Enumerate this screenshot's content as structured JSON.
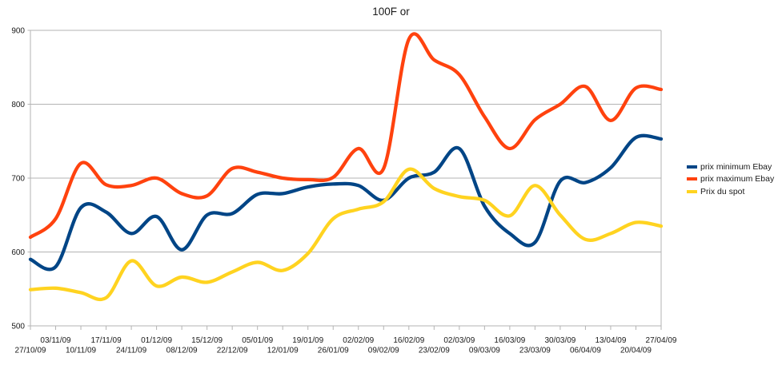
{
  "chart_data": {
    "type": "line",
    "smooth": true,
    "title": "100F or",
    "categories": [
      "27/10/09",
      "03/11/09",
      "10/11/09",
      "17/11/09",
      "24/11/09",
      "01/12/09",
      "08/12/09",
      "15/12/09",
      "22/12/09",
      "05/01/09",
      "12/01/09",
      "19/01/09",
      "26/01/09",
      "02/02/09",
      "09/02/09",
      "16/02/09",
      "23/02/09",
      "02/03/09",
      "09/03/09",
      "16/03/09",
      "23/03/09",
      "30/03/09",
      "06/04/09",
      "13/04/09",
      "20/04/09",
      "27/04/09"
    ],
    "series": [
      {
        "name": "prix minimum Ebay",
        "color": "#004586",
        "values": [
          590,
          580,
          660,
          654,
          625,
          648,
          603,
          650,
          652,
          678,
          679,
          688,
          692,
          690,
          670,
          700,
          708,
          740,
          662,
          625,
          613,
          696,
          694,
          714,
          755,
          753
        ]
      },
      {
        "name": "prix maximum Ebay",
        "color": "#FF420E",
        "values": [
          620,
          645,
          720,
          691,
          690,
          700,
          679,
          676,
          713,
          708,
          700,
          698,
          701,
          740,
          713,
          888,
          860,
          840,
          783,
          740,
          779,
          800,
          824,
          778,
          822,
          820
        ]
      },
      {
        "name": "Prix du spot",
        "color": "#FFD320",
        "values": [
          549,
          551,
          545,
          538,
          588,
          554,
          566,
          559,
          573,
          586,
          575,
          598,
          645,
          658,
          668,
          712,
          686,
          675,
          670,
          649,
          690,
          650,
          617,
          625,
          640,
          635
        ]
      }
    ],
    "xlabel": "",
    "ylabel": "",
    "ylim": [
      500,
      900
    ],
    "yticks": [
      500,
      600,
      700,
      800,
      900
    ],
    "grid": "horizontal",
    "legend_position": "right",
    "gridline_color": "#b3b3b3",
    "axis_color": "#b3b3b3",
    "text_color": "#1a1a1a",
    "background": "#ffffff"
  }
}
